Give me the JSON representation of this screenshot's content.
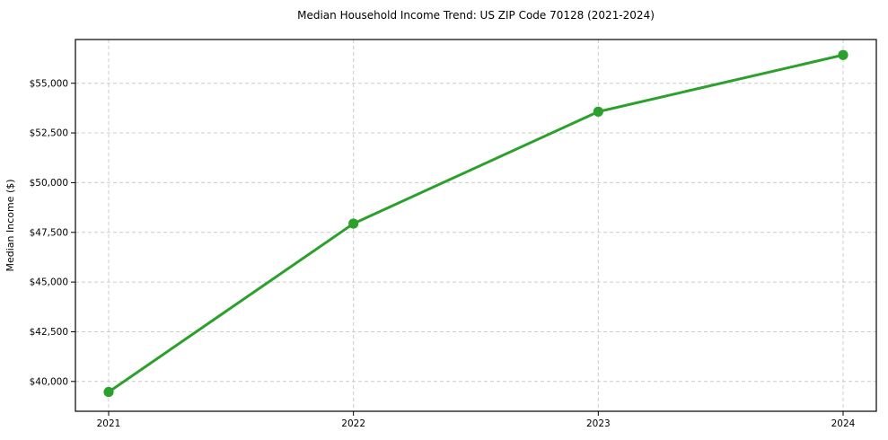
{
  "chart_data": {
    "type": "line",
    "title": "Median Household Income Trend: US ZIP Code 70128 (2021-2024)",
    "xlabel": "",
    "ylabel": "Median Income ($)",
    "categories": [
      "2021",
      "2022",
      "2023",
      "2024"
    ],
    "series": [
      {
        "name": "median-household-income",
        "values": [
          39470,
          47940,
          53570,
          56420
        ],
        "color": "#2ca02c",
        "marker": "circle",
        "marker_radius": 5.6,
        "line_width": 3
      }
    ],
    "yticks": {
      "values": [
        40000,
        42500,
        45000,
        47500,
        50000,
        52500,
        55000
      ],
      "labels": [
        "$40,000",
        "$42,500",
        "$45,000",
        "$47,500",
        "$50,000",
        "$52,500",
        "$55,000"
      ]
    },
    "ylim": [
      38500,
      57200
    ],
    "grid": true,
    "grid_style": "dashed",
    "grid_color": "#cccccc",
    "axis_color": "#000000",
    "legend": "none",
    "background": "#ffffff"
  }
}
